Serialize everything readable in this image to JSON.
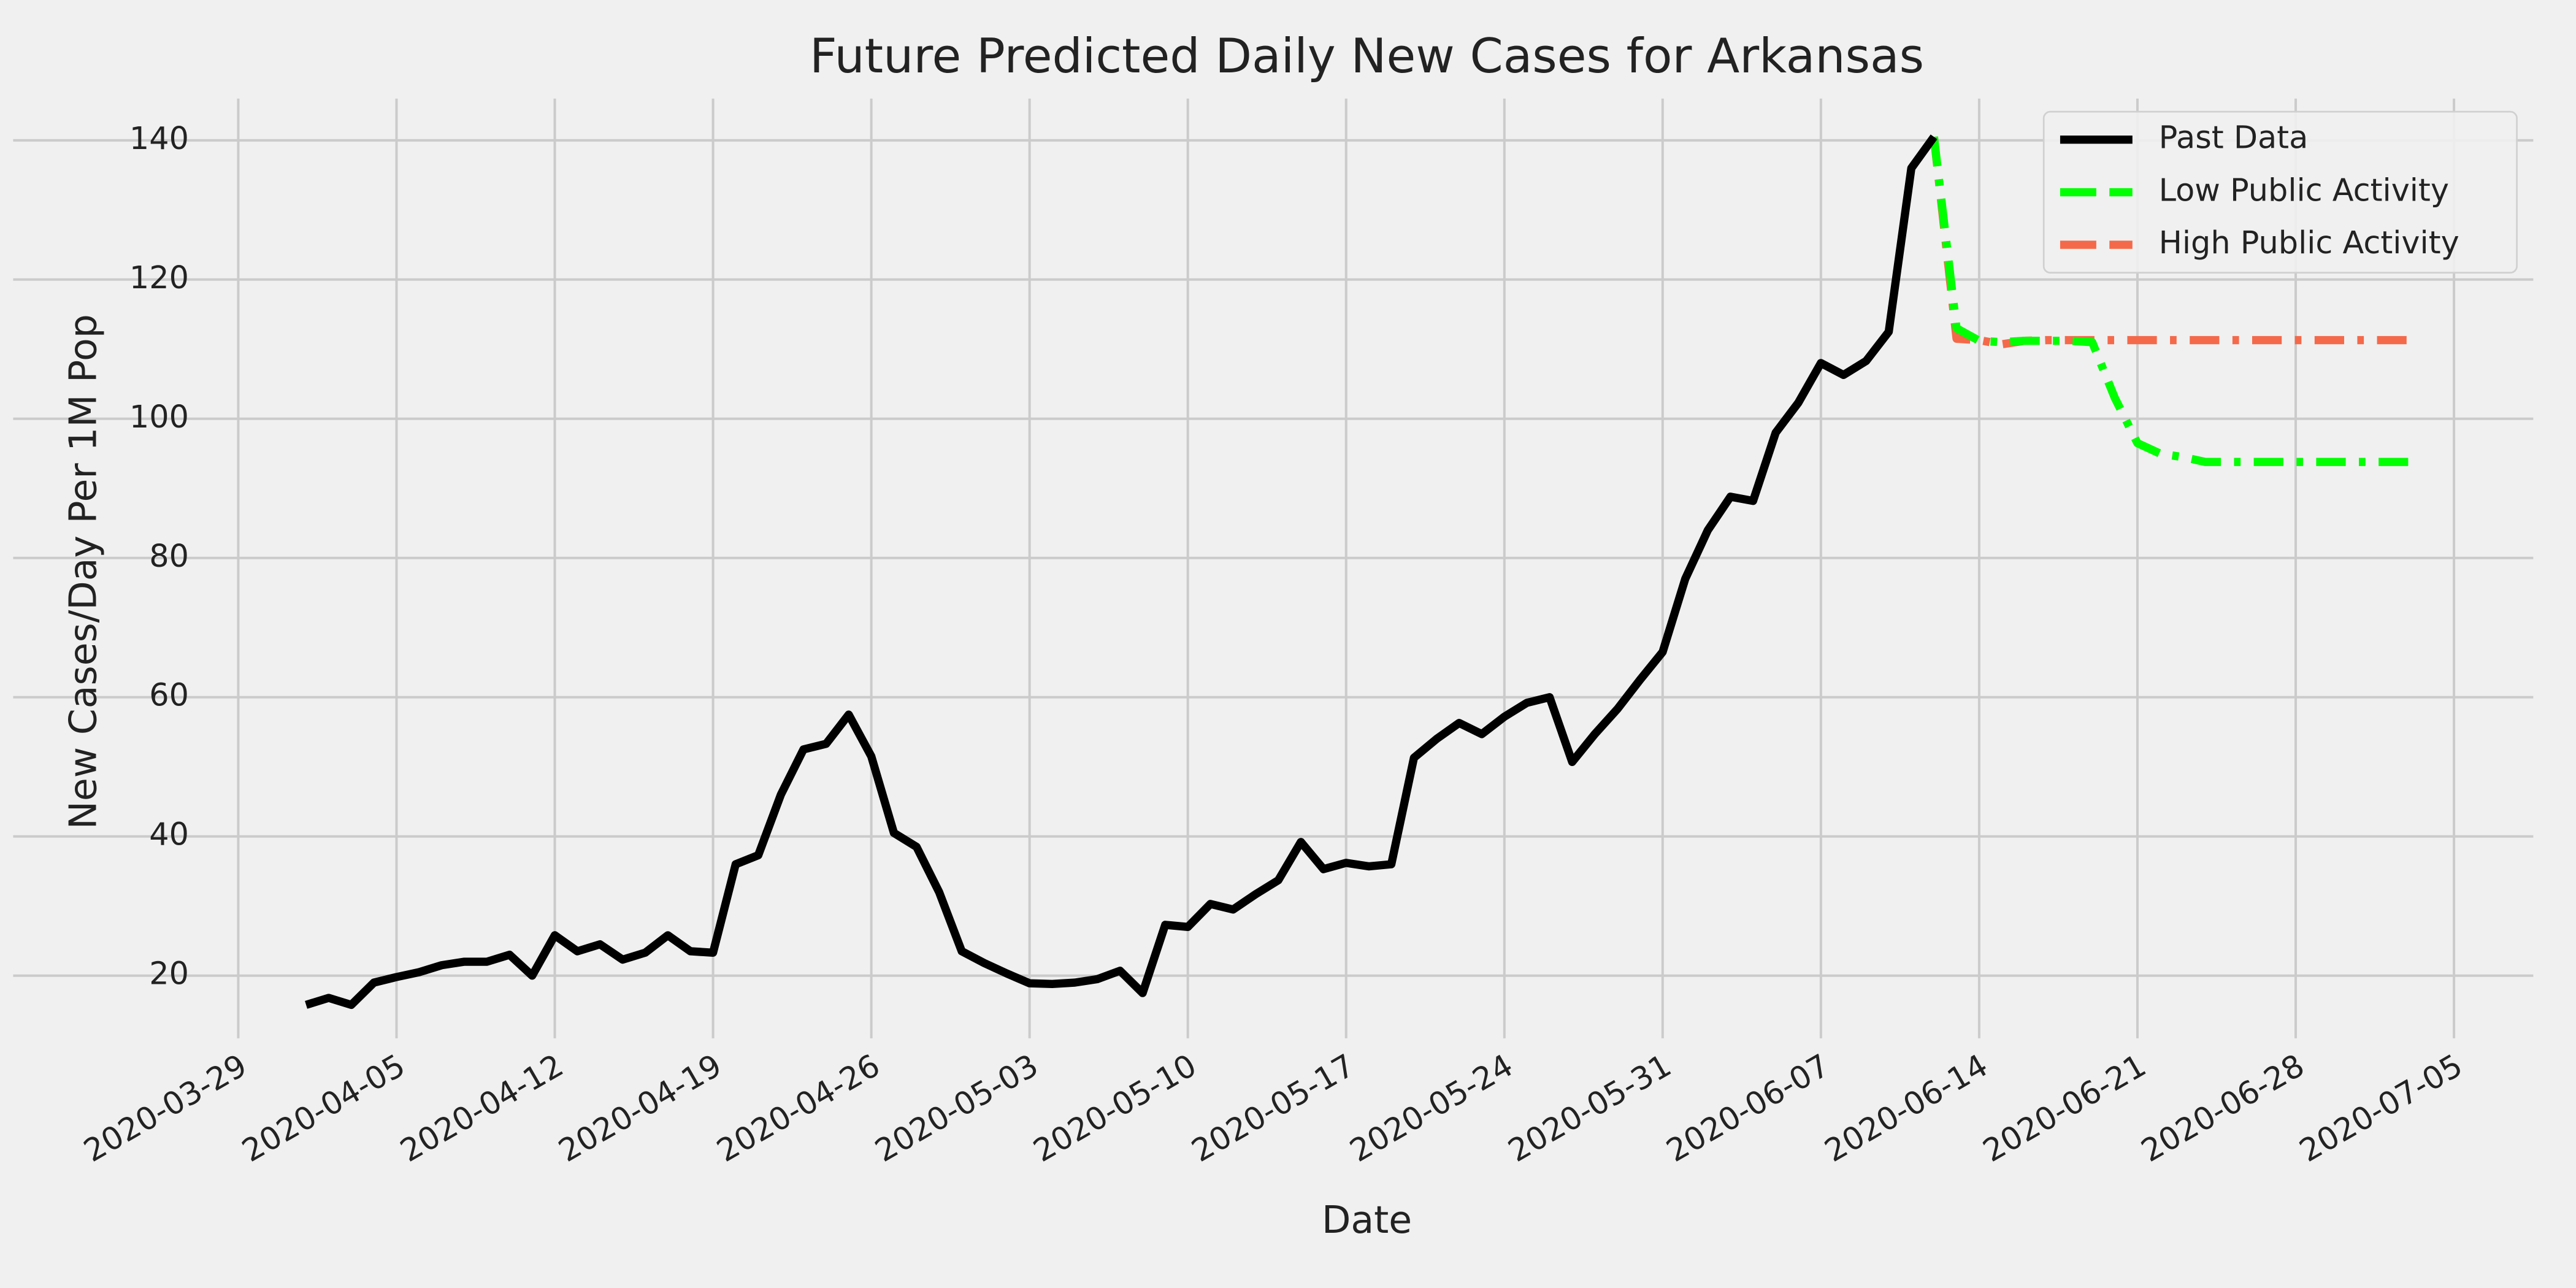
{
  "chart_data": {
    "type": "line",
    "title": "Future Predicted Daily New Cases for Arkansas",
    "x_label": "Date",
    "y_label": "New Cases/Day Per 1M Pop",
    "xlim": [
      "2020-03-27",
      "2020-07-08"
    ],
    "ylim": [
      11,
      146
    ],
    "xticks": [
      "2020-03-29",
      "2020-04-05",
      "2020-04-12",
      "2020-04-19",
      "2020-04-26",
      "2020-05-03",
      "2020-05-10",
      "2020-05-17",
      "2020-05-24",
      "2020-05-31",
      "2020-06-07",
      "2020-06-14",
      "2020-06-21",
      "2020-06-28",
      "2020-07-05"
    ],
    "yticks": [
      20,
      40,
      60,
      80,
      100,
      120,
      140
    ],
    "grid": true,
    "legend": "upper right",
    "series": [
      {
        "name": "Past Data",
        "color": "#000000",
        "style": "solid",
        "x": [
          "2020-04-01",
          "2020-04-02",
          "2020-04-03",
          "2020-04-04",
          "2020-04-05",
          "2020-04-06",
          "2020-04-07",
          "2020-04-08",
          "2020-04-09",
          "2020-04-10",
          "2020-04-11",
          "2020-04-12",
          "2020-04-13",
          "2020-04-14",
          "2020-04-15",
          "2020-04-16",
          "2020-04-17",
          "2020-04-18",
          "2020-04-19",
          "2020-04-20",
          "2020-04-21",
          "2020-04-22",
          "2020-04-23",
          "2020-04-24",
          "2020-04-25",
          "2020-04-26",
          "2020-04-27",
          "2020-04-28",
          "2020-04-29",
          "2020-04-30",
          "2020-05-01",
          "2020-05-02",
          "2020-05-03",
          "2020-05-04",
          "2020-05-05",
          "2020-05-06",
          "2020-05-07",
          "2020-05-08",
          "2020-05-09",
          "2020-05-10",
          "2020-05-11",
          "2020-05-12",
          "2020-05-13",
          "2020-05-14",
          "2020-05-15",
          "2020-05-16",
          "2020-05-17",
          "2020-05-18",
          "2020-05-19",
          "2020-05-20",
          "2020-05-21",
          "2020-05-22",
          "2020-05-23",
          "2020-05-24",
          "2020-05-25",
          "2020-05-26",
          "2020-05-27",
          "2020-05-28",
          "2020-05-29",
          "2020-05-30",
          "2020-05-31",
          "2020-06-01",
          "2020-06-02",
          "2020-06-03",
          "2020-06-04",
          "2020-06-05",
          "2020-06-06",
          "2020-06-07",
          "2020-06-08",
          "2020-06-09",
          "2020-06-10",
          "2020-06-11",
          "2020-06-12"
        ],
        "values": [
          15.8,
          16.8,
          15.8,
          19.0,
          19.8,
          20.5,
          21.5,
          22.0,
          22.0,
          23.0,
          20.0,
          25.8,
          23.5,
          24.5,
          22.3,
          23.3,
          25.8,
          23.5,
          23.3,
          36.0,
          37.3,
          46.0,
          52.5,
          53.3,
          57.5,
          51.5,
          40.5,
          38.5,
          32.0,
          23.5,
          21.8,
          20.3,
          18.9,
          18.8,
          19.0,
          19.5,
          20.7,
          17.5,
          27.3,
          27.0,
          30.3,
          29.5,
          31.7,
          33.7,
          39.2,
          35.3,
          36.2,
          35.7,
          36.0,
          51.3,
          54.0,
          56.3,
          54.7,
          57.2,
          59.2,
          60.0,
          50.7,
          54.7,
          58.3,
          62.5,
          66.5,
          77.0,
          84.0,
          88.8,
          88.2,
          98.0,
          102.3,
          108.0,
          106.3,
          108.3,
          112.5,
          136.0,
          140.5
        ]
      },
      {
        "name": "Low Public Activity",
        "color": "#00ff00",
        "style": "dashdot",
        "x": [
          "2020-06-12",
          "2020-06-13",
          "2020-06-14",
          "2020-06-15",
          "2020-06-16",
          "2020-06-17",
          "2020-06-18",
          "2020-06-19",
          "2020-06-20",
          "2020-06-21",
          "2020-06-22",
          "2020-06-23",
          "2020-06-24",
          "2020-06-25",
          "2020-06-26",
          "2020-06-27",
          "2020-06-28",
          "2020-06-29",
          "2020-06-30",
          "2020-07-01",
          "2020-07-02",
          "2020-07-03"
        ],
        "values": [
          140.5,
          113.0,
          111.2,
          111.0,
          111.2,
          111.2,
          111.2,
          111.0,
          103.0,
          96.5,
          95.0,
          94.5,
          93.8,
          93.8,
          93.8,
          93.8,
          93.8,
          93.8,
          93.8,
          93.8,
          93.8,
          93.8
        ]
      },
      {
        "name": "High Public Activity",
        "color": "#f4694a",
        "style": "dashdot",
        "x": [
          "2020-06-12",
          "2020-06-13",
          "2020-06-14",
          "2020-06-15",
          "2020-06-16",
          "2020-06-17",
          "2020-06-18",
          "2020-06-19",
          "2020-06-20",
          "2020-06-21",
          "2020-06-22",
          "2020-06-23",
          "2020-06-24",
          "2020-06-25",
          "2020-06-26",
          "2020-06-27",
          "2020-06-28",
          "2020-06-29",
          "2020-06-30",
          "2020-07-01",
          "2020-07-02",
          "2020-07-03"
        ],
        "values": [
          140.5,
          111.5,
          111.3,
          110.7,
          111.2,
          111.3,
          111.3,
          111.3,
          111.3,
          111.3,
          111.3,
          111.3,
          111.3,
          111.3,
          111.3,
          111.3,
          111.3,
          111.3,
          111.3,
          111.3,
          111.3,
          111.3
        ]
      }
    ]
  }
}
